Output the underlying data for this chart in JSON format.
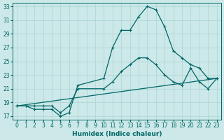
{
  "xlabel": "Humidex (Indice chaleur)",
  "xlim": [
    -0.5,
    23.5
  ],
  "ylim": [
    16.5,
    33.5
  ],
  "xticks": [
    0,
    1,
    2,
    3,
    4,
    5,
    6,
    7,
    8,
    9,
    10,
    11,
    12,
    13,
    14,
    15,
    16,
    17,
    18,
    19,
    20,
    21,
    22,
    23
  ],
  "yticks": [
    17,
    19,
    21,
    23,
    25,
    27,
    29,
    31,
    33
  ],
  "bg_color": "#cce8e8",
  "grid_color": "#aad4d4",
  "line_color": "#006666",
  "line1_x": [
    0,
    1,
    2,
    3,
    4,
    5,
    6,
    7,
    10,
    11,
    12,
    13,
    14,
    15,
    16,
    17,
    18,
    19,
    20,
    21,
    22,
    23
  ],
  "line1_y": [
    18.5,
    18.5,
    18.0,
    18.0,
    18.0,
    17.0,
    17.5,
    21.5,
    22.5,
    27.0,
    29.5,
    29.5,
    31.5,
    33.0,
    32.5,
    30.0,
    26.5,
    25.5,
    24.5,
    24.0,
    22.5,
    22.5
  ],
  "line2_x": [
    0,
    1,
    2,
    3,
    4,
    5,
    6,
    7,
    10,
    11,
    12,
    13,
    14,
    15,
    16,
    17,
    18,
    19,
    20,
    21,
    22,
    23
  ],
  "line2_y": [
    18.5,
    18.5,
    18.5,
    18.5,
    18.5,
    17.5,
    18.5,
    21.0,
    21.0,
    22.0,
    23.5,
    24.5,
    25.5,
    25.5,
    24.5,
    23.0,
    22.0,
    21.5,
    24.0,
    22.0,
    21.0,
    22.5
  ],
  "line3_x": [
    0,
    23
  ],
  "line3_y": [
    18.5,
    22.5
  ]
}
